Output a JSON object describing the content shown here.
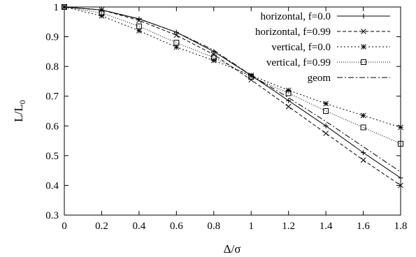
{
  "chart_data": {
    "type": "line",
    "title": "",
    "xlabel": "Δ/σ",
    "ylabel_main": "L/L",
    "ylabel_sub": "0",
    "xlim": [
      0,
      1.8
    ],
    "ylim": [
      0.3,
      1.0
    ],
    "xticks": [
      "0",
      "0.2",
      "0.4",
      "0.6",
      "0.8",
      "1",
      "1.2",
      "1.4",
      "1.6",
      "1.8"
    ],
    "yticks": [
      "0.3",
      "0.4",
      "0.5",
      "0.6",
      "0.7",
      "0.8",
      "0.9",
      "1"
    ],
    "grid": false,
    "legend_position": "top-right",
    "x": [
      0,
      0.2,
      0.4,
      0.6,
      0.8,
      1.0,
      1.2,
      1.4,
      1.6,
      1.8
    ],
    "series": [
      {
        "name": "horizontal, f=0.0",
        "marker": "plus",
        "dash": "solid",
        "values": [
          1.0,
          0.99,
          0.96,
          0.915,
          0.85,
          0.77,
          0.685,
          0.6,
          0.51,
          0.425
        ]
      },
      {
        "name": "horizontal, f=0.99",
        "marker": "cross",
        "dash": "dashed",
        "values": [
          1.0,
          0.99,
          0.955,
          0.905,
          0.84,
          0.755,
          0.665,
          0.575,
          0.485,
          0.4
        ]
      },
      {
        "name": "vertical, f=0.0",
        "marker": "star",
        "dash": "dotted",
        "values": [
          1.0,
          0.97,
          0.92,
          0.865,
          0.82,
          0.77,
          0.72,
          0.675,
          0.635,
          0.595
        ]
      },
      {
        "name": "vertical, f=0.99",
        "marker": "square",
        "dash": "finedotted",
        "values": [
          1.0,
          0.98,
          0.935,
          0.88,
          0.83,
          0.765,
          0.71,
          0.65,
          0.595,
          0.54
        ]
      },
      {
        "name": "geom",
        "marker": "none",
        "dash": "dashdot",
        "values": [
          1.0,
          0.99,
          0.96,
          0.915,
          0.855,
          0.77,
          0.695,
          0.615,
          0.53,
          0.445
        ]
      }
    ]
  }
}
